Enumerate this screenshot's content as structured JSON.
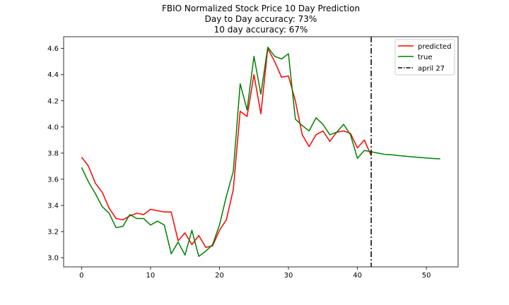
{
  "chart_data": {
    "type": "line",
    "title_lines": [
      "FBIO Normalized Stock Price 10 Day Prediction",
      "Day to Day accuracy: 73%",
      "10 day accuracy: 67%"
    ],
    "xlabel": "",
    "ylabel": "",
    "xlim": [
      -2.6,
      54.6
    ],
    "ylim": [
      2.93,
      4.69
    ],
    "x_ticks": [
      0,
      10,
      20,
      30,
      40,
      50
    ],
    "y_ticks": [
      3.0,
      3.2,
      3.4,
      3.6,
      3.8,
      4.0,
      4.2,
      4.4,
      4.6
    ],
    "grid": false,
    "legend_placement": "top-right",
    "series": [
      {
        "name": "predicted",
        "color": "#ff0000",
        "style": "solid",
        "x": [
          0,
          1,
          2,
          3,
          4,
          5,
          6,
          7,
          8,
          9,
          10,
          11,
          12,
          13,
          14,
          15,
          16,
          17,
          18,
          19,
          20,
          21,
          22,
          23,
          24,
          25,
          26,
          27,
          28,
          29,
          30,
          31,
          32,
          33,
          34,
          35,
          36,
          37,
          38,
          39,
          40,
          41,
          42
        ],
        "y": [
          3.77,
          3.7,
          3.57,
          3.5,
          3.38,
          3.3,
          3.29,
          3.32,
          3.34,
          3.33,
          3.37,
          3.36,
          3.35,
          3.35,
          3.13,
          3.19,
          3.1,
          3.17,
          3.08,
          3.09,
          3.21,
          3.29,
          3.52,
          4.12,
          4.08,
          4.4,
          4.1,
          4.6,
          4.5,
          4.38,
          4.39,
          4.2,
          3.94,
          3.85,
          3.94,
          3.97,
          3.89,
          3.96,
          3.97,
          3.95,
          3.84,
          3.9,
          3.78
        ]
      },
      {
        "name": "true",
        "color": "#008000",
        "style": "solid",
        "x": [
          0,
          1,
          2,
          3,
          4,
          5,
          6,
          7,
          8,
          9,
          10,
          11,
          12,
          13,
          14,
          15,
          16,
          17,
          18,
          19,
          20,
          21,
          22,
          23,
          24,
          25,
          26,
          27,
          28,
          29,
          30,
          31,
          32,
          33,
          34,
          35,
          36,
          37,
          38,
          39,
          40,
          41,
          42,
          43,
          44,
          45,
          46,
          47,
          48,
          49,
          50,
          51,
          52
        ],
        "y": [
          3.69,
          3.58,
          3.49,
          3.39,
          3.34,
          3.23,
          3.24,
          3.33,
          3.3,
          3.3,
          3.25,
          3.28,
          3.25,
          3.03,
          3.12,
          3.02,
          3.21,
          3.01,
          3.05,
          3.1,
          3.25,
          3.47,
          3.66,
          4.33,
          4.13,
          4.54,
          4.25,
          4.61,
          4.54,
          4.52,
          4.56,
          4.06,
          4.01,
          3.97,
          4.07,
          4.02,
          3.94,
          3.96,
          4.02,
          3.94,
          3.76,
          3.82,
          3.81,
          3.8,
          3.79,
          3.787,
          3.781,
          3.776,
          3.771,
          3.767,
          3.763,
          3.759,
          3.756
        ]
      }
    ],
    "vertical_line": {
      "name": "april 27",
      "x": 42,
      "color": "#000000",
      "style": "dashdot"
    }
  }
}
